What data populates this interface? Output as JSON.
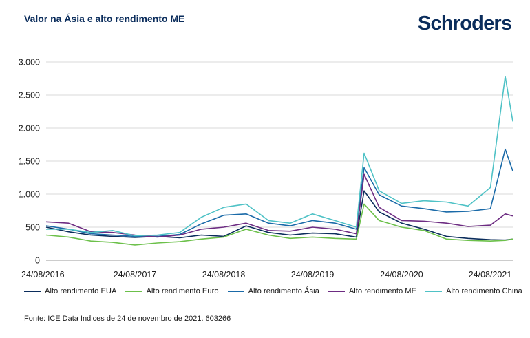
{
  "header": {
    "title": "Valor na Ásia e alto rendimento ME",
    "logo": "Schroders"
  },
  "source": "Fonte: ICE Data Indices de 24 de novembro de 2021. 603266",
  "chart_data": {
    "type": "line",
    "title": "Valor na Ásia e alto rendimento ME",
    "xlabel": "",
    "ylabel": "",
    "ylim": [
      0,
      3000
    ],
    "yticks": [
      0,
      500,
      1000,
      1500,
      2000,
      2500,
      3000
    ],
    "ytick_labels": [
      "0",
      "500",
      "1.000",
      "1.500",
      "2.000",
      "2.500",
      "3.000"
    ],
    "xlim": [
      "24/08/2016",
      "24/11/2021"
    ],
    "xticks": [
      "24/08/2016",
      "24/08/2017",
      "24/08/2018",
      "24/08/2019",
      "24/08/2020",
      "24/08/2021"
    ],
    "grid": true,
    "legend_position": "bottom",
    "x": [
      "2016-08-24",
      "2016-11-24",
      "2017-02-24",
      "2017-05-24",
      "2017-08-24",
      "2017-11-24",
      "2018-02-24",
      "2018-05-24",
      "2018-08-24",
      "2018-11-24",
      "2019-02-24",
      "2019-05-24",
      "2019-08-24",
      "2019-11-24",
      "2020-02-20",
      "2020-03-23",
      "2020-05-24",
      "2020-08-24",
      "2020-11-24",
      "2021-02-24",
      "2021-05-24",
      "2021-08-24",
      "2021-10-24",
      "2021-11-24"
    ],
    "series": [
      {
        "name": "Alto rendimento EUA",
        "color": "#0b2d5c",
        "values": [
          500,
          430,
          380,
          360,
          345,
          360,
          340,
          380,
          360,
          520,
          420,
          380,
          410,
          400,
          350,
          1050,
          730,
          560,
          470,
          360,
          330,
          310,
          305,
          320
        ]
      },
      {
        "name": "Alto rendimento Euro",
        "color": "#6cc04a",
        "values": [
          380,
          350,
          290,
          270,
          230,
          260,
          280,
          320,
          350,
          470,
          380,
          330,
          350,
          330,
          320,
          850,
          600,
          500,
          450,
          320,
          300,
          290,
          300,
          320
        ]
      },
      {
        "name": "Alto rendimento Ásia",
        "color": "#1a6aa8",
        "values": [
          520,
          470,
          400,
          380,
          360,
          360,
          390,
          550,
          680,
          700,
          560,
          520,
          600,
          560,
          470,
          1400,
          990,
          820,
          780,
          730,
          740,
          780,
          1680,
          1350
        ]
      },
      {
        "name": "Alto rendimento ME",
        "color": "#6d2c82",
        "values": [
          580,
          560,
          430,
          420,
          380,
          350,
          380,
          470,
          500,
          560,
          450,
          440,
          500,
          470,
          400,
          1300,
          800,
          600,
          590,
          560,
          510,
          530,
          700,
          670
        ]
      },
      {
        "name": "Alto rendimento China",
        "color": "#4fc2c6",
        "values": [
          470,
          470,
          420,
          450,
          370,
          380,
          420,
          650,
          800,
          850,
          600,
          560,
          700,
          600,
          500,
          1620,
          1050,
          860,
          900,
          880,
          820,
          1100,
          2780,
          2100
        ]
      }
    ]
  }
}
